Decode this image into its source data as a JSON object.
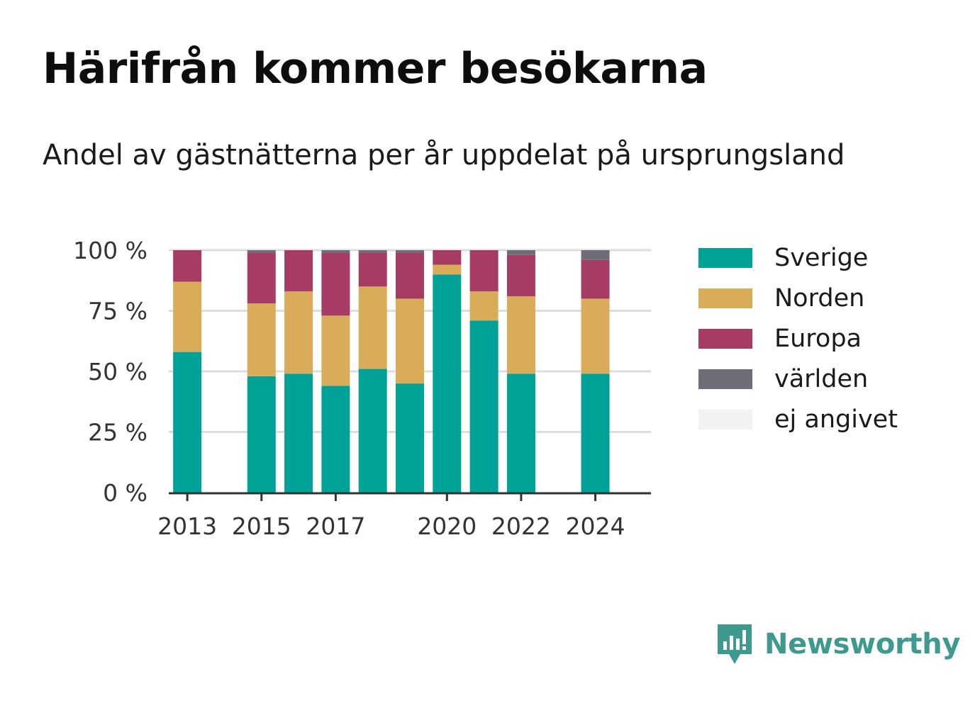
{
  "header": {
    "title": "Härifrån kommer besökarna",
    "subtitle": "Andel av gästnätterna per år uppdelat på ursprungsland"
  },
  "brand": {
    "name": "Newsworthy",
    "icon": "newsworthy-logo-icon",
    "color": "#3e9a8e"
  },
  "chart_data": {
    "type": "bar",
    "stacked": true,
    "title": "Härifrån kommer besökarna",
    "subtitle": "Andel av gästnätterna per år uppdelat på ursprungsland",
    "xlabel": "",
    "ylabel": "",
    "x": [
      2013,
      2015,
      2016,
      2017,
      2018,
      2019,
      2020,
      2021,
      2022,
      2024
    ],
    "x_ticks": [
      "2013",
      "2015",
      "2017",
      "2020",
      "2022",
      "2024"
    ],
    "y_ticks": [
      "0 %",
      "25 %",
      "50 %",
      "75 %",
      "100 %"
    ],
    "ylim": [
      0,
      100
    ],
    "grid": true,
    "legend_position": "right",
    "series": [
      {
        "name": "Sverige",
        "color": "#00a298",
        "values": [
          58,
          48,
          49,
          44,
          51,
          45,
          90,
          71,
          49,
          49
        ]
      },
      {
        "name": "Norden",
        "color": "#d8ac58",
        "values": [
          29,
          30,
          34,
          29,
          34,
          35,
          4,
          12,
          32,
          31
        ]
      },
      {
        "name": "Europa",
        "color": "#a63c64",
        "values": [
          13,
          21,
          17,
          26,
          14,
          19,
          6,
          17,
          17,
          16
        ]
      },
      {
        "name": "världen",
        "color": "#6d6e78",
        "values": [
          0,
          1,
          0,
          1,
          1,
          1,
          0,
          0,
          2,
          4
        ]
      },
      {
        "name": "ej angivet",
        "color": "#f3f1f2",
        "values": [
          0,
          0,
          0,
          0,
          0,
          0,
          0,
          0,
          0,
          0
        ]
      }
    ]
  }
}
